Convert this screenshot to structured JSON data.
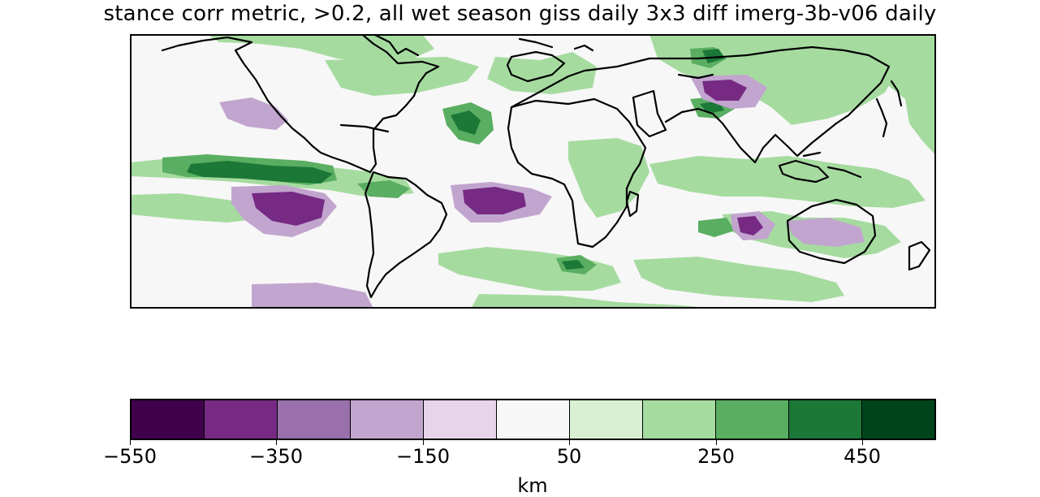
{
  "title": "stance corr metric, >0.2, all wet season giss daily 3x3 diff imerg-3b-v06 daily",
  "map": {
    "background_color": "#f7f7f7",
    "coastline_color": "#000000"
  },
  "colorbar": {
    "segment_colors": [
      "#40004b",
      "#762a83",
      "#9970ab",
      "#c2a5cf",
      "#e7d4e8",
      "#f7f7f7",
      "#d9f0d3",
      "#a6dba0",
      "#5aae61",
      "#1b7837",
      "#00441b"
    ],
    "tick_labels": [
      "−550",
      "−350",
      "−150",
      "50",
      "250",
      "450"
    ],
    "units": "km"
  }
}
